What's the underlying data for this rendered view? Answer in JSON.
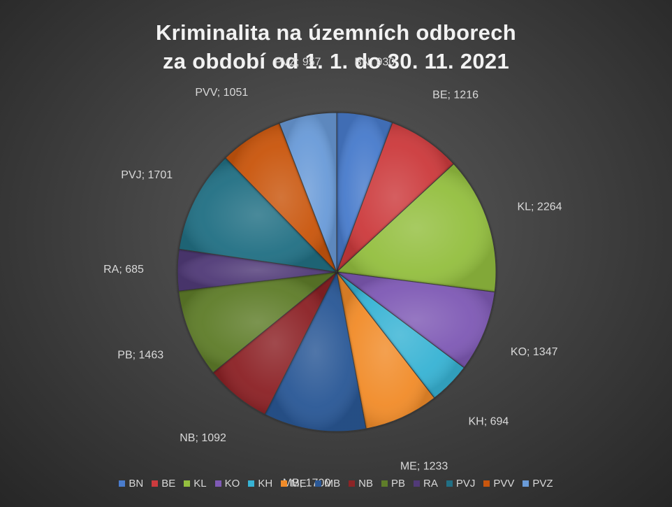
{
  "chart_data": {
    "type": "pie",
    "title_lines": [
      "Kriminalita na územních odborech",
      "za období od 1. 1. do 30. 11. 2021"
    ],
    "legend_position": "bottom",
    "slices": [
      {
        "name": "BN",
        "value": 930,
        "label": "BN; 930",
        "color": "#4a7ccc"
      },
      {
        "name": "BE",
        "value": 1216,
        "label": "BE; 1216",
        "color": "#cc3b3e"
      },
      {
        "name": "KL",
        "value": 2264,
        "label": "KL; 2264",
        "color": "#94bf3f"
      },
      {
        "name": "KO",
        "value": 1347,
        "label": "KO; 1347",
        "color": "#7f5ab5"
      },
      {
        "name": "KH",
        "value": 694,
        "label": "KH; 694",
        "color": "#37b3d4"
      },
      {
        "name": "ME",
        "value": 1233,
        "label": "ME; 1233",
        "color": "#f18c2a"
      },
      {
        "name": "MB",
        "value": 1700,
        "label": "MB; 1700",
        "color": "#2b5896"
      },
      {
        "name": "NB",
        "value": 1092,
        "label": "NB; 1092",
        "color": "#8c2426"
      },
      {
        "name": "PB",
        "value": 1463,
        "label": "PB; 1463",
        "color": "#5f7d2a"
      },
      {
        "name": "RA",
        "value": 685,
        "label": "RA; 685",
        "color": "#513a78"
      },
      {
        "name": "PVJ",
        "value": 1701,
        "label": "PVJ; 1701",
        "color": "#216f84"
      },
      {
        "name": "PVV",
        "value": 1051,
        "label": "PVV; 1051",
        "color": "#c9560e"
      },
      {
        "name": "PVZ",
        "value": 957,
        "label": "PVZ; 957",
        "color": "#6a9bd8"
      }
    ]
  }
}
